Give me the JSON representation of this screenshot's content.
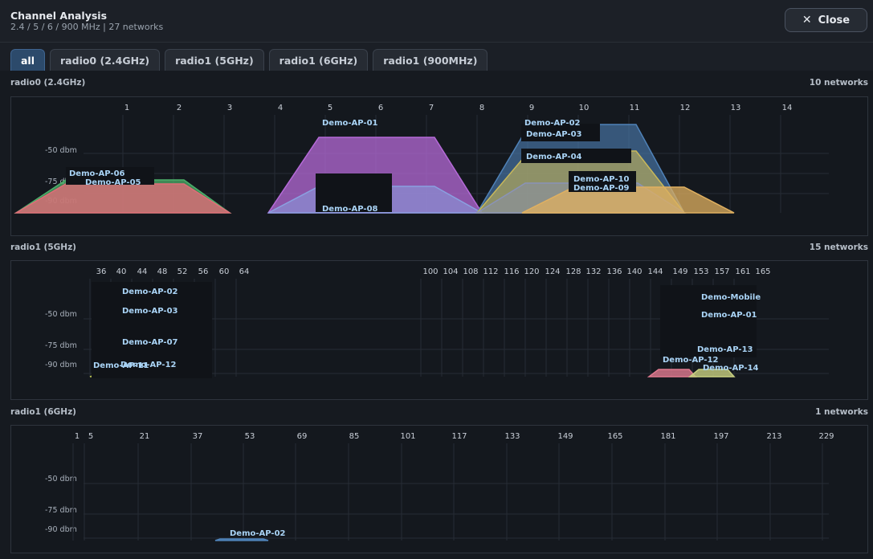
{
  "header": {
    "title": "Channel Analysis",
    "subtitle": "2.4 / 5 / 6 / 900 MHz | 27 networks",
    "close_label": "Close"
  },
  "tabs": [
    {
      "label": "all",
      "active": true
    },
    {
      "label": "radio0 (2.4GHz)",
      "active": false
    },
    {
      "label": "radio1 (5GHz)",
      "active": false
    },
    {
      "label": "radio1 (6GHz)",
      "active": false
    },
    {
      "label": "radio1 (900MHz)",
      "active": false
    }
  ],
  "sections": [
    {
      "label": "radio0 (2.4GHz)",
      "count": "10 networks",
      "channels": [
        "1",
        "2",
        "3",
        "4",
        "5",
        "6",
        "7",
        "8",
        "9",
        "10",
        "11",
        "12",
        "13",
        "14"
      ],
      "dbm_labels": [
        "-50 dbm",
        "-75 dbm",
        "-90 dbm"
      ],
      "networks": [
        {
          "name": "Demo-AP-06",
          "color": "#4caf6a"
        },
        {
          "name": "Demo-AP-05",
          "color": "#e06d78"
        },
        {
          "name": "Demo-AP-01",
          "color": "#b56ad8"
        },
        {
          "name": "Demo-AP-08",
          "color": "#8aa0e0"
        },
        {
          "name": "Demo-AP-02",
          "color": "#4f82b8"
        },
        {
          "name": "Demo-AP-03",
          "color": "#6a8fc0"
        },
        {
          "name": "Demo-AP-04",
          "color": "#c8b85a"
        },
        {
          "name": "Demo-AP-10",
          "color": "#8a93b8"
        },
        {
          "name": "Demo-AP-09",
          "color": "#e0b060"
        }
      ]
    },
    {
      "label": "radio1 (5GHz)",
      "count": "15 networks",
      "channels": [
        "36",
        "40",
        "44",
        "48",
        "52",
        "56",
        "60",
        "64",
        "100",
        "104",
        "108",
        "112",
        "116",
        "120",
        "124",
        "128",
        "132",
        "136",
        "140",
        "144",
        "149",
        "153",
        "157",
        "161",
        "165"
      ],
      "dbm_labels": [
        "-50 dbm",
        "-75 dbm",
        "-90 dbm"
      ],
      "networks": [
        {
          "name": "Demo-AP-02",
          "color": "#4f82b8"
        },
        {
          "name": "Demo-AP-03",
          "color": "#6a8fc0"
        },
        {
          "name": "Demo-AP-07",
          "color": "#5aa0c0"
        },
        {
          "name": "Demo-AP-11",
          "color": "#b8c050"
        },
        {
          "name": "Demo-AP-12",
          "color": "#8ab0e0"
        },
        {
          "name": "Demo-Mobile",
          "color": "#7a9fd0"
        },
        {
          "name": "Demo-AP-01",
          "color": "#b56ad8"
        },
        {
          "name": "Demo-AP-13",
          "color": "#6ab0a0"
        },
        {
          "name": "Demo-AP-12",
          "color": "#e07a90"
        },
        {
          "name": "Demo-AP-14",
          "color": "#c8d080"
        }
      ]
    },
    {
      "label": "radio1 (6GHz)",
      "count": "1 networks",
      "channels": [
        "1",
        "5",
        "21",
        "37",
        "53",
        "69",
        "85",
        "101",
        "117",
        "133",
        "149",
        "165",
        "181",
        "197",
        "213",
        "229"
      ],
      "dbm_labels": [
        "-50 dbm",
        "-75 dbm",
        "-90 dbm"
      ],
      "networks": [
        {
          "name": "Demo-AP-02",
          "color": "#4f82b8"
        }
      ]
    }
  ]
}
